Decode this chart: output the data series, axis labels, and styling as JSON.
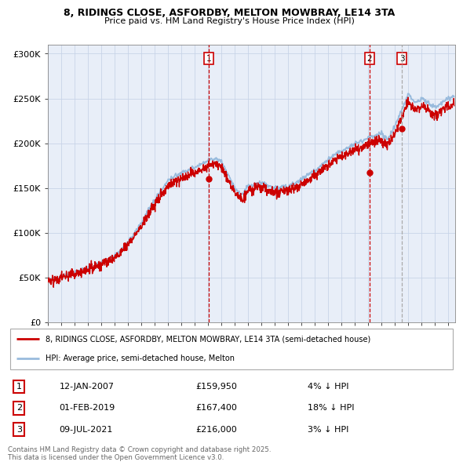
{
  "title_line1": "8, RIDINGS CLOSE, ASFORDBY, MELTON MOWBRAY, LE14 3TA",
  "title_line2": "Price paid vs. HM Land Registry's House Price Index (HPI)",
  "ytick_values": [
    0,
    50000,
    100000,
    150000,
    200000,
    250000,
    300000
  ],
  "ylim": [
    0,
    310000
  ],
  "xlim_start": 1995.0,
  "xlim_end": 2025.5,
  "transactions": [
    {
      "label": "1",
      "date": "12-JAN-2007",
      "price": 159950,
      "pct": "4%",
      "direction": "↓",
      "year_dec": 2007.04,
      "vline_style": "dashed",
      "vline_color": "#cc0000"
    },
    {
      "label": "2",
      "date": "01-FEB-2019",
      "price": 167400,
      "pct": "18%",
      "direction": "↓",
      "year_dec": 2019.08,
      "vline_style": "dashed",
      "vline_color": "#cc0000"
    },
    {
      "label": "3",
      "date": "09-JUL-2021",
      "price": 216000,
      "pct": "3%",
      "direction": "↓",
      "year_dec": 2021.52,
      "vline_style": "dashed",
      "vline_color": "#aaaaaa"
    }
  ],
  "legend_line1": "8, RIDINGS CLOSE, ASFORDBY, MELTON MOWBRAY, LE14 3TA (semi-detached house)",
  "legend_line2": "HPI: Average price, semi-detached house, Melton",
  "footer": "Contains HM Land Registry data © Crown copyright and database right 2025.\nThis data is licensed under the Open Government Licence v3.0.",
  "line_color_property": "#cc0000",
  "line_color_hpi": "#99bbdd",
  "vline_color_red": "#cc0000",
  "vline_color_gray": "#aaaaaa",
  "chart_bg": "#e8eef8",
  "grid_color": "#c8d4e8",
  "background_color": "#ffffff"
}
